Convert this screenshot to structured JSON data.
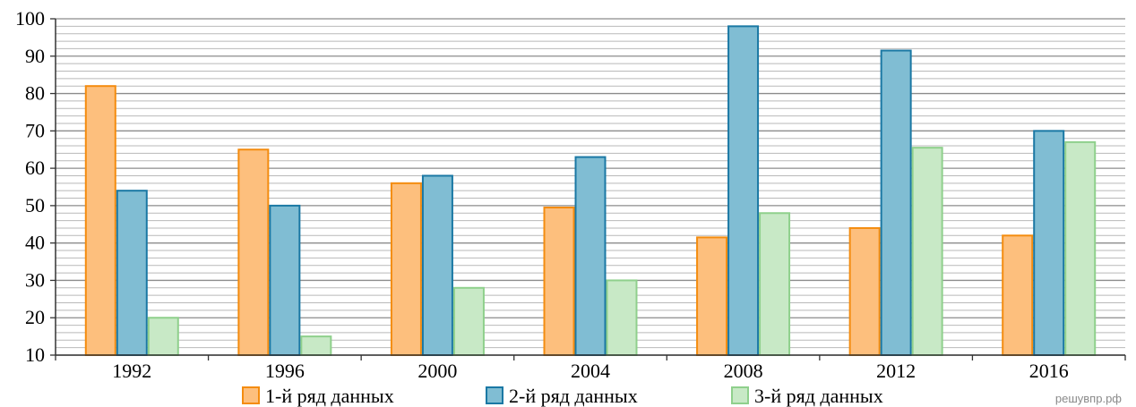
{
  "chart_data": {
    "type": "bar",
    "categories": [
      "1992",
      "1996",
      "2000",
      "2004",
      "2008",
      "2012",
      "2016"
    ],
    "series": [
      {
        "name": "1-й ряд данных",
        "values": [
          82,
          65,
          56,
          49.5,
          41.5,
          44,
          42
        ],
        "fill": "#fdbf7d",
        "stroke": "#f48c0f"
      },
      {
        "name": "2-й ряд данных",
        "values": [
          54,
          50,
          58,
          63,
          98,
          91.5,
          70
        ],
        "fill": "#80bdd3",
        "stroke": "#1a78a4"
      },
      {
        "name": "3-й ряд данных",
        "values": [
          20,
          15,
          28,
          30,
          48,
          65.5,
          67
        ],
        "fill": "#c8e9c6",
        "stroke": "#8fd08c"
      }
    ],
    "title": "",
    "xlabel": "",
    "ylabel": "",
    "ylim": [
      10,
      100
    ],
    "y_ticks": [
      "10",
      "20",
      "30",
      "40",
      "50",
      "60",
      "70",
      "80",
      "90",
      "100"
    ],
    "grid": true,
    "minor_grid_step": 2,
    "legend": "bottom",
    "colors": {
      "grid_major": "#8c8c8c",
      "grid_minor": "#b9b9b9",
      "axis": "#333333"
    }
  },
  "watermark": "решувпр.рф"
}
